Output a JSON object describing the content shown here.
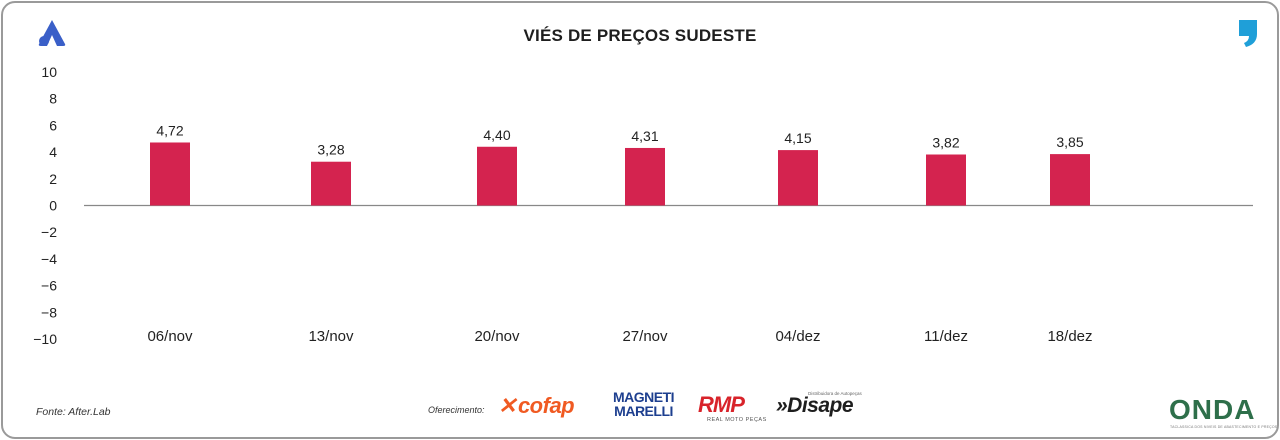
{
  "header": {
    "title": "VIÉS DE PREÇOS SUDESTE",
    "logo_icon": "after-lab-a-logo-icon",
    "right_icon": "comma-quote-icon"
  },
  "colors": {
    "bar": "#d4234f",
    "logo": "#3a5fc8",
    "accent": "#1f9fd8",
    "axis": "#888888"
  },
  "chart_data": {
    "type": "bar",
    "title": "VIÉS DE PREÇOS SUDESTE",
    "categories": [
      "06/nov",
      "13/nov",
      "20/nov",
      "27/nov",
      "04/dez",
      "11/dez",
      "18/dez"
    ],
    "values": [
      4.72,
      3.28,
      4.4,
      4.31,
      4.15,
      3.82,
      3.85
    ],
    "value_labels": [
      "4,72",
      "3,28",
      "4,40",
      "4,31",
      "4,15",
      "3,82",
      "3,85"
    ],
    "yticks": [
      10,
      8,
      6,
      4,
      2,
      0,
      -2,
      -4,
      -6,
      -8,
      -10
    ],
    "ylim": [
      -10,
      10
    ],
    "xlabel": "",
    "ylabel": "",
    "grid": false,
    "legend": "none"
  },
  "footer": {
    "source": "Fonte: After.Lab",
    "sponsor_label": "Oferecimento:",
    "sponsors": {
      "cofap": "cofap",
      "magneti_top": "MAGNETI",
      "magneti_bottom": "MARELLI",
      "rmp": "RMP",
      "rmp_sub": "REAL MOTO PEÇAS",
      "disape": "»Disape",
      "disape_sub": "Distribuidora de Autopeças",
      "onda": "ONDA",
      "onda_sub": "TACLASSICA DOS NIVEIS DE ABASTECIMENTO E PREÇOS"
    }
  }
}
